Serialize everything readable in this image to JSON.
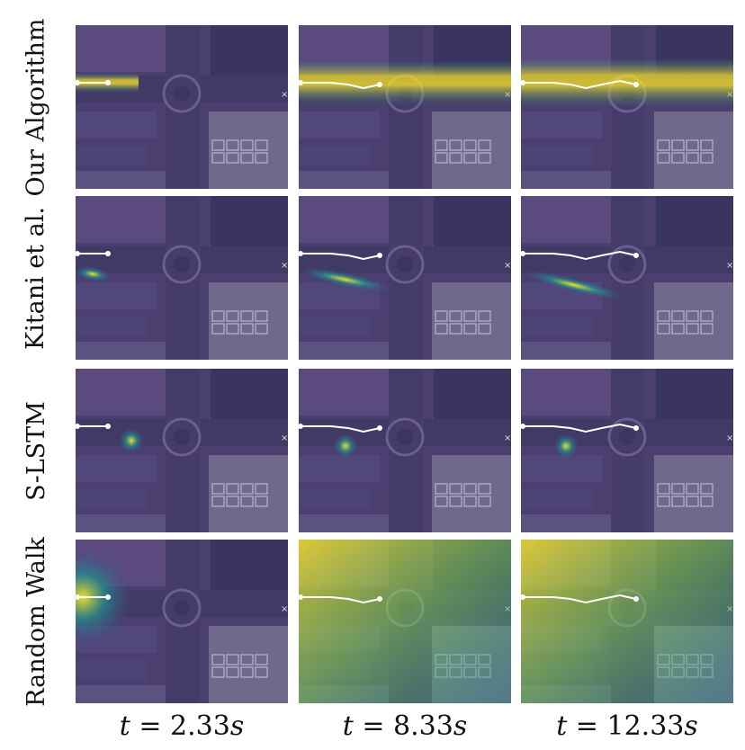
{
  "rows": [
    {
      "label": "Our Algorithm",
      "heat": "band"
    },
    {
      "label": "Kitani et al.",
      "heat": "streak"
    },
    {
      "label": "S-LSTM",
      "heat": "blob"
    },
    {
      "label": "Random Walk",
      "heat": "diffuse"
    }
  ],
  "columns": [
    {
      "label": "t = 2.33s",
      "t_var": "t",
      "t_value": "2.33",
      "t_unit": "s",
      "trajectory_progress": 0.16
    },
    {
      "label": "t = 8.33s",
      "t_var": "t",
      "t_value": "8.33",
      "t_unit": "s",
      "trajectory_progress": 0.45
    },
    {
      "label": "t = 12.33s",
      "t_var": "t",
      "t_value": "12.33",
      "t_unit": "s",
      "trajectory_progress": 0.62
    }
  ],
  "colors": {
    "background": "#4a3f6e",
    "trajectory": "#ffffff",
    "heat_low": "#3b528b",
    "heat_mid": "#21918c",
    "heat_high": "#fde725"
  }
}
